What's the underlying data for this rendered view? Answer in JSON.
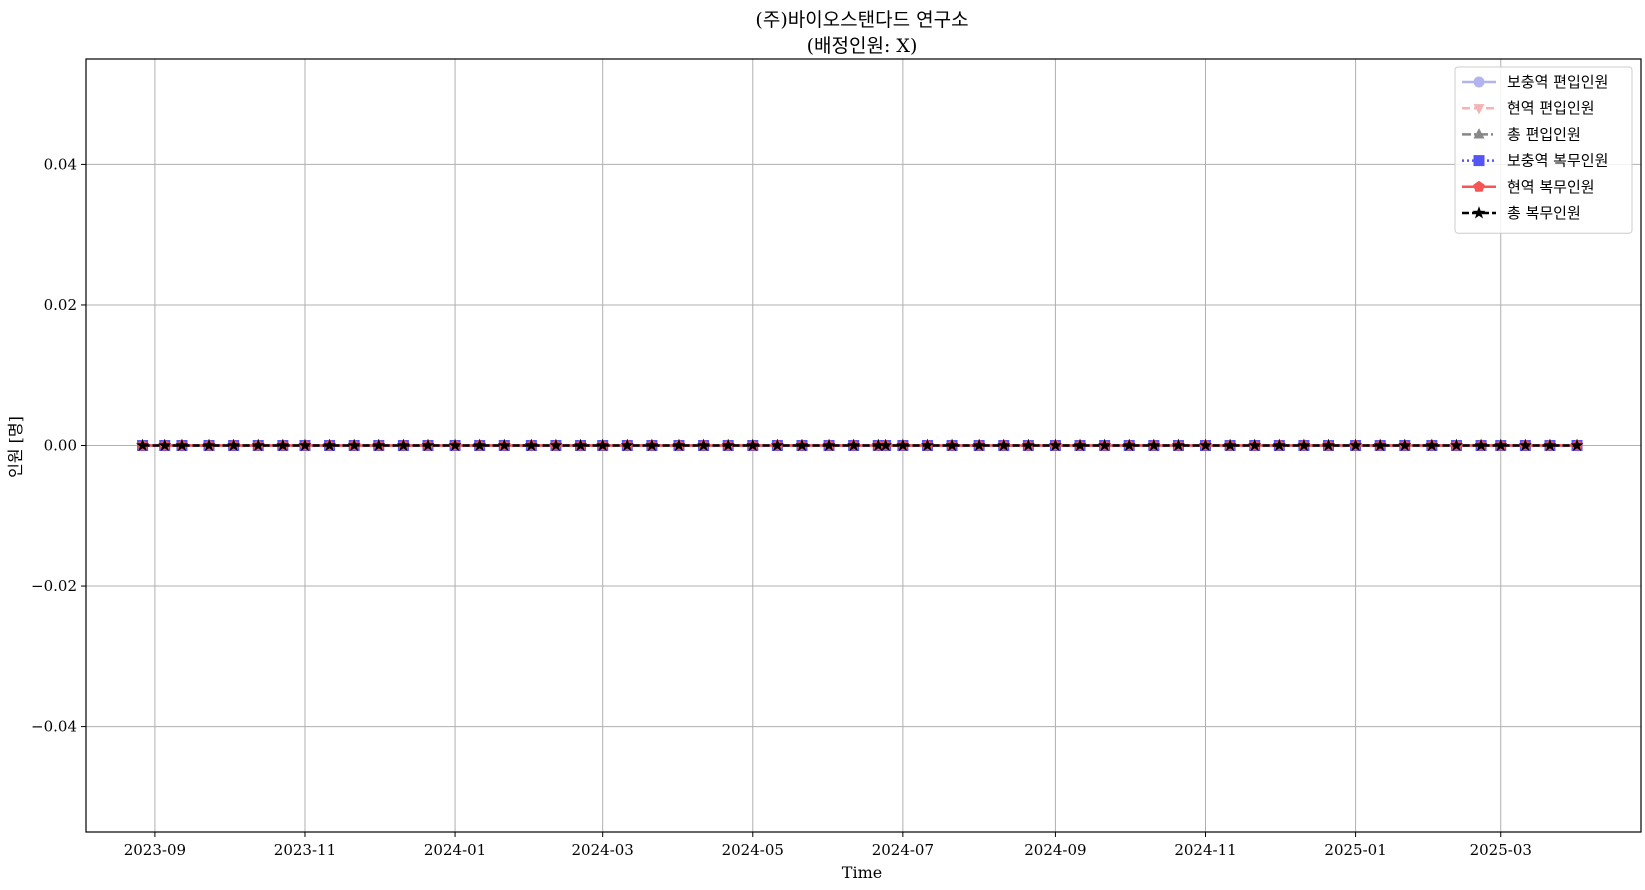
{
  "chart_data": {
    "type": "line",
    "title": "(주)바이오스탠다드 연구소",
    "subtitle": "(배정인원: X)",
    "xlabel": "Time",
    "ylabel": "인원 [명]",
    "x_range": [
      "2023-08-04",
      "2025-04-27"
    ],
    "ylim": [
      -0.055,
      0.055
    ],
    "grid": true,
    "legend_position": "top-right",
    "x_ticks": [
      "2023-09",
      "2023-11",
      "2024-01",
      "2024-03",
      "2024-05",
      "2024-07",
      "2024-09",
      "2024-11",
      "2025-01",
      "2025-03"
    ],
    "y_ticks": [
      {
        "value": 0.04,
        "label": "0.04"
      },
      {
        "value": 0.02,
        "label": "0.02"
      },
      {
        "value": 0.0,
        "label": "0.00"
      },
      {
        "value": -0.02,
        "label": "−0.02"
      },
      {
        "value": -0.04,
        "label": "−0.04"
      }
    ],
    "x": [
      "2023-08-27",
      "2023-09-05",
      "2023-09-12",
      "2023-09-23",
      "2023-10-03",
      "2023-10-13",
      "2023-10-23",
      "2023-11-01",
      "2023-11-11",
      "2023-11-21",
      "2023-12-01",
      "2023-12-11",
      "2023-12-21",
      "2024-01-01",
      "2024-01-11",
      "2024-01-21",
      "2024-02-01",
      "2024-02-11",
      "2024-02-21",
      "2024-03-01",
      "2024-03-11",
      "2024-03-21",
      "2024-04-01",
      "2024-04-11",
      "2024-04-21",
      "2024-05-01",
      "2024-05-11",
      "2024-05-21",
      "2024-06-01",
      "2024-06-11",
      "2024-06-21",
      "2024-06-24",
      "2024-07-01",
      "2024-07-11",
      "2024-07-21",
      "2024-08-01",
      "2024-08-11",
      "2024-08-21",
      "2024-09-01",
      "2024-09-11",
      "2024-09-21",
      "2024-10-01",
      "2024-10-11",
      "2024-10-21",
      "2024-11-01",
      "2024-11-11",
      "2024-11-21",
      "2024-12-01",
      "2024-12-11",
      "2024-12-21",
      "2025-01-01",
      "2025-01-11",
      "2025-01-21",
      "2025-02-01",
      "2025-02-11",
      "2025-02-21",
      "2025-03-01",
      "2025-03-11",
      "2025-03-21",
      "2025-04-01"
    ],
    "series": [
      {
        "name": "보충역 편입인원",
        "color": "#b3b3f0",
        "marker": "circle",
        "dash": "",
        "width": 2.5,
        "value": 0
      },
      {
        "name": "현역 편입인원",
        "color": "#f5b3b3",
        "marker": "triangle-down",
        "dash": "8 4",
        "width": 2.5,
        "value": 0
      },
      {
        "name": "총 편입인원",
        "color": "#888888",
        "marker": "triangle-up",
        "dash": "9 3 2 3",
        "width": 2.5,
        "value": 0
      },
      {
        "name": "보충역 복무인원",
        "color": "#5555f5",
        "marker": "square",
        "dash": "2 3",
        "width": 2.5,
        "value": 0
      },
      {
        "name": "현역 복무인원",
        "color": "#f55555",
        "marker": "pentagon",
        "dash": "",
        "width": 2.5,
        "value": 0
      },
      {
        "name": "총 복무인원",
        "color": "#000000",
        "marker": "star",
        "dash": "7 3",
        "width": 2.5,
        "value": 0
      }
    ]
  }
}
